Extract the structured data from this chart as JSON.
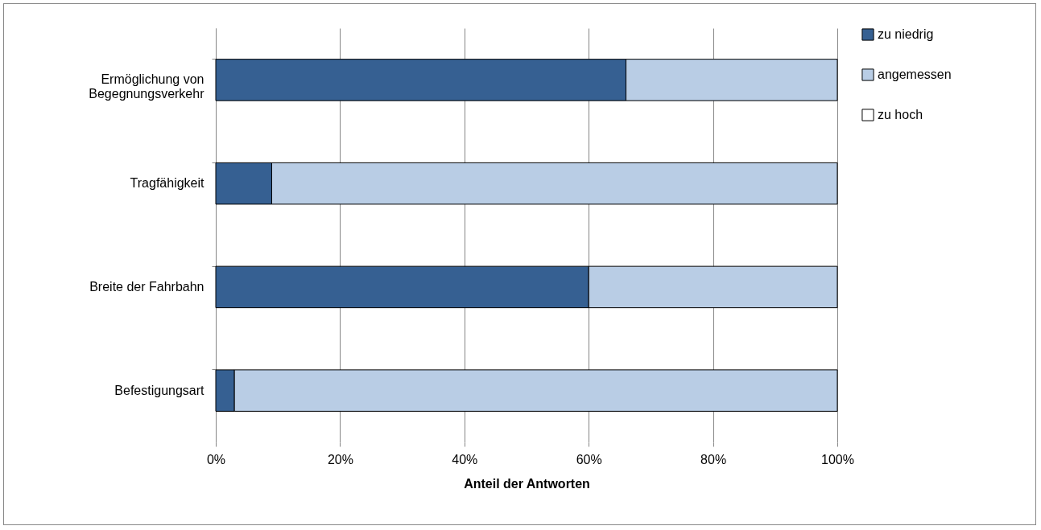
{
  "chart_data": {
    "type": "bar",
    "orientation": "horizontal",
    "stacked": true,
    "xlabel": "Anteil der Antworten",
    "categories": [
      "Ermöglichung von Begegnungsverkehr",
      "Tragfähigkeit",
      "Breite der Fahrbahn",
      "Befestigungsart"
    ],
    "series": [
      {
        "name": "zu niedrig",
        "color": "#366092",
        "values": [
          66,
          9,
          60,
          3
        ]
      },
      {
        "name": "angemessen",
        "color": "#b9cde5",
        "values": [
          34,
          91,
          40,
          97
        ]
      },
      {
        "name": "zu hoch",
        "color": "#ffffff",
        "values": [
          0,
          0,
          0,
          0
        ]
      }
    ],
    "xlim": [
      0,
      100
    ],
    "xticks": [
      {
        "value": 0,
        "label": "0%"
      },
      {
        "value": 20,
        "label": "20%"
      },
      {
        "value": 40,
        "label": "40%"
      },
      {
        "value": 60,
        "label": "60%"
      },
      {
        "value": 80,
        "label": "80%"
      },
      {
        "value": 100,
        "label": "100%"
      }
    ],
    "grid": "x",
    "legend": "right"
  }
}
